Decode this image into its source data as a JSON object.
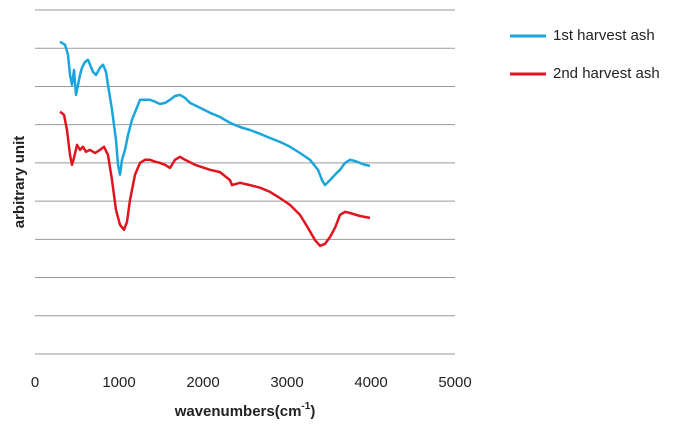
{
  "chart_data": {
    "type": "line",
    "xlabel_parts": [
      "wavenumbers(cm",
      "-1",
      ")"
    ],
    "ylabel": "arbitrary unit",
    "xlim": [
      0,
      5000
    ],
    "xticks": [
      0,
      1000,
      2000,
      3000,
      4000,
      5000
    ],
    "ylim": [
      0,
      9
    ],
    "yticks": [
      0,
      1,
      2,
      3,
      4,
      5,
      6,
      7,
      8,
      9
    ],
    "grid": true,
    "legend": "right",
    "series": [
      {
        "name": "1st harvest ash",
        "color": "#1aa6dc",
        "x": [
          298,
          357,
          393,
          417,
          440,
          464,
          488,
          512,
          536,
          560,
          595,
          631,
          655,
          690,
          726,
          774,
          810,
          845,
          869,
          917,
          964,
          988,
          1012,
          1036,
          1071,
          1107,
          1155,
          1202,
          1250,
          1310,
          1369,
          1429,
          1488,
          1548,
          1607,
          1667,
          1726,
          1786,
          1845,
          1964,
          2083,
          2202,
          2321,
          2381,
          2440,
          2560,
          2679,
          2798,
          2917,
          3036,
          3155,
          3274,
          3369,
          3417,
          3452,
          3512,
          3571,
          3631,
          3690,
          3750,
          3810,
          3869,
          3929,
          3988
        ],
        "values": [
          8.17,
          8.09,
          7.83,
          7.3,
          7.04,
          7.43,
          6.78,
          7.04,
          7.3,
          7.49,
          7.64,
          7.7,
          7.57,
          7.38,
          7.3,
          7.49,
          7.57,
          7.38,
          7.04,
          6.39,
          5.6,
          4.95,
          4.69,
          5.08,
          5.34,
          5.73,
          6.13,
          6.39,
          6.65,
          6.65,
          6.65,
          6.6,
          6.54,
          6.57,
          6.65,
          6.75,
          6.78,
          6.7,
          6.57,
          6.44,
          6.31,
          6.2,
          6.05,
          5.99,
          5.94,
          5.86,
          5.76,
          5.65,
          5.55,
          5.42,
          5.26,
          5.08,
          4.82,
          4.55,
          4.42,
          4.55,
          4.69,
          4.82,
          5.0,
          5.08,
          5.05,
          5.0,
          4.95,
          4.92
        ]
      },
      {
        "name": "2nd harvest ash",
        "color": "#e0141e",
        "x": [
          298,
          345,
          381,
          417,
          440,
          464,
          500,
          536,
          571,
          607,
          655,
          714,
          774,
          821,
          869,
          917,
          964,
          1012,
          1060,
          1095,
          1131,
          1190,
          1250,
          1310,
          1369,
          1429,
          1488,
          1548,
          1607,
          1667,
          1726,
          1786,
          1905,
          2083,
          2202,
          2321,
          2345,
          2440,
          2560,
          2679,
          2798,
          2917,
          3036,
          3155,
          3250,
          3333,
          3393,
          3452,
          3512,
          3571,
          3631,
          3690,
          3750,
          3869,
          3988
        ],
        "values": [
          6.34,
          6.26,
          5.86,
          5.21,
          4.95,
          5.13,
          5.47,
          5.34,
          5.42,
          5.29,
          5.34,
          5.26,
          5.34,
          5.42,
          5.21,
          4.55,
          3.77,
          3.38,
          3.25,
          3.46,
          4.03,
          4.69,
          5.0,
          5.08,
          5.08,
          5.03,
          5.0,
          4.95,
          4.87,
          5.08,
          5.16,
          5.08,
          4.95,
          4.82,
          4.76,
          4.55,
          4.42,
          4.48,
          4.42,
          4.35,
          4.24,
          4.08,
          3.9,
          3.64,
          3.3,
          2.98,
          2.83,
          2.88,
          3.06,
          3.3,
          3.64,
          3.72,
          3.69,
          3.61,
          3.56
        ]
      }
    ]
  }
}
